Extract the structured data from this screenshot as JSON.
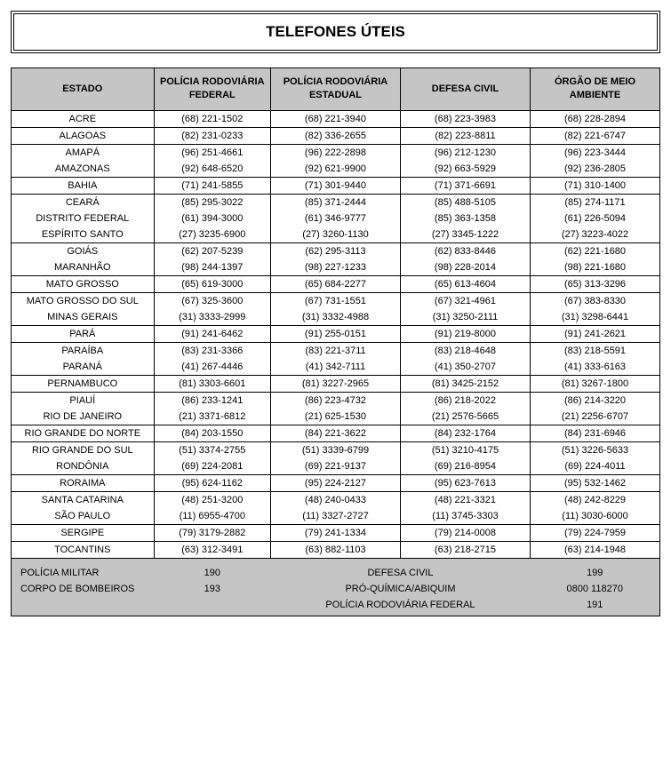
{
  "title": "TELEFONES ÚTEIS",
  "columns": [
    "ESTADO",
    "POLÍCIA RODOVIÁRIA FEDERAL",
    "POLÍCIA RODOVIÁRIA ESTADUAL",
    "DEFESA CIVIL",
    "ÓRGÃO DE MEIO AMBIENTE"
  ],
  "groups": [
    {
      "rows": [
        {
          "estado": "ACRE",
          "prf": "(68) 221-1502",
          "pre": "(68) 221-3940",
          "dc": "(68) 223-3983",
          "oma": "(68) 228-2894"
        }
      ]
    },
    {
      "rows": [
        {
          "estado": "ALAGOAS",
          "prf": "(82) 231-0233",
          "pre": "(82) 336-2655",
          "dc": "(82) 223-8811",
          "oma": "(82) 221-6747"
        }
      ]
    },
    {
      "rows": [
        {
          "estado": "AMAPÁ",
          "prf": "(96) 251-4661",
          "pre": "(96) 222-2898",
          "dc": "(96) 212-1230",
          "oma": "(96) 223-3444"
        },
        {
          "estado": "AMAZONAS",
          "prf": "(92) 648-6520",
          "pre": "(92) 621-9900",
          "dc": "(92) 663-5929",
          "oma": "(92) 236-2805"
        }
      ]
    },
    {
      "rows": [
        {
          "estado": "BAHIA",
          "prf": "(71) 241-5855",
          "pre": "(71) 301-9440",
          "dc": "(71) 371-6691",
          "oma": "(71) 310-1400"
        }
      ]
    },
    {
      "rows": [
        {
          "estado": "CEARÁ",
          "prf": "(85) 295-3022",
          "pre": "(85) 371-2444",
          "dc": "(85) 488-5105",
          "oma": "(85) 274-1171"
        },
        {
          "estado": "DISTRITO FEDERAL",
          "prf": "(61) 394-3000",
          "pre": "(61) 346-9777",
          "dc": "(85) 363-1358",
          "oma": "(61) 226-5094"
        },
        {
          "estado": "ESPÍRITO SANTO",
          "prf": "(27) 3235-6900",
          "pre": "(27) 3260-1130",
          "dc": "(27) 3345-1222",
          "oma": "(27) 3223-4022"
        }
      ]
    },
    {
      "rows": [
        {
          "estado": "GOIÁS",
          "prf": "(62) 207-5239",
          "pre": "(62) 295-3113",
          "dc": "(62) 833-8446",
          "oma": "(62) 221-1680"
        },
        {
          "estado": "MARANHÃO",
          "prf": "(98) 244-1397",
          "pre": "(98) 227-1233",
          "dc": "(98) 228-2014",
          "oma": "(98) 221-1680"
        }
      ]
    },
    {
      "rows": [
        {
          "estado": "MATO GROSSO",
          "prf": "(65) 619-3000",
          "pre": "(65) 684-2277",
          "dc": "(65) 613-4604",
          "oma": "(65) 313-3296"
        }
      ]
    },
    {
      "rows": [
        {
          "estado": "MATO GROSSO DO SUL",
          "prf": "(67) 325-3600",
          "pre": "(67) 731-1551",
          "dc": "(67) 321-4961",
          "oma": "(67) 383-8330"
        },
        {
          "estado": "MINAS GERAIS",
          "prf": "(31) 3333-2999",
          "pre": "(31) 3332-4988",
          "dc": "(31) 3250-2111",
          "oma": "(31) 3298-6441"
        }
      ]
    },
    {
      "rows": [
        {
          "estado": "PARÁ",
          "prf": "(91) 241-6462",
          "pre": "(91) 255-0151",
          "dc": "(91) 219-8000",
          "oma": "(91) 241-2621"
        }
      ]
    },
    {
      "rows": [
        {
          "estado": "PARAÍBA",
          "prf": "(83) 231-3366",
          "pre": "(83) 221-3711",
          "dc": "(83) 218-4648",
          "oma": "(83) 218-5591"
        },
        {
          "estado": "PARANÁ",
          "prf": "(41) 267-4446",
          "pre": "(41) 342-7111",
          "dc": "(41) 350-2707",
          "oma": "(41) 333-6163"
        }
      ]
    },
    {
      "rows": [
        {
          "estado": "PERNAMBUCO",
          "prf": "(81) 3303-6601",
          "pre": "(81) 3227-2965",
          "dc": "(81) 3425-2152",
          "oma": "(81) 3267-1800"
        }
      ]
    },
    {
      "rows": [
        {
          "estado": "PIAUÍ",
          "prf": "(86) 233-1241",
          "pre": "(86) 223-4732",
          "dc": "(86) 218-2022",
          "oma": "(86) 214-3220"
        },
        {
          "estado": "RIO DE JANEIRO",
          "prf": "(21) 3371-6812",
          "pre": "(21) 625-1530",
          "dc": "(21) 2576-5665",
          "oma": "(21) 2256-6707"
        }
      ]
    },
    {
      "rows": [
        {
          "estado": "RIO GRANDE DO NORTE",
          "prf": "(84) 203-1550",
          "pre": "(84) 221-3622",
          "dc": "(84) 232-1764",
          "oma": "(84) 231-6946"
        }
      ]
    },
    {
      "rows": [
        {
          "estado": "RIO GRANDE DO SUL",
          "prf": "(51) 3374-2755",
          "pre": "(51) 3339-6799",
          "dc": "(51) 3210-4175",
          "oma": "(51) 3226-5633"
        },
        {
          "estado": "RONDÔNIA",
          "prf": "(69) 224-2081",
          "pre": "(69) 221-9137",
          "dc": "(69) 216-8954",
          "oma": "(69) 224-4011"
        }
      ]
    },
    {
      "rows": [
        {
          "estado": "RORAIMA",
          "prf": "(95) 624-1162",
          "pre": "(95) 224-2127",
          "dc": "(95) 623-7613",
          "oma": "(95) 532-1462"
        }
      ]
    },
    {
      "rows": [
        {
          "estado": "SANTA CATARINA",
          "prf": "(48) 251-3200",
          "pre": "(48) 240-0433",
          "dc": "(48) 221-3321",
          "oma": "(48) 242-8229"
        },
        {
          "estado": "SÃO PAULO",
          "prf": "(11) 6955-4700",
          "pre": "(11) 3327-2727",
          "dc": "(11) 3745-3303",
          "oma": "(11) 3030-6000"
        }
      ]
    },
    {
      "rows": [
        {
          "estado": "SERGIPE",
          "prf": "(79) 3179-2882",
          "pre": "(79) 241-1334",
          "dc": "(79) 214-0008",
          "oma": "(79) 224-7959"
        }
      ]
    },
    {
      "rows": [
        {
          "estado": "TOCANTINS",
          "prf": "(63) 312-3491",
          "pre": "(63) 882-1103",
          "dc": "(63) 218-2715",
          "oma": "(63) 214-1948"
        }
      ]
    }
  ],
  "footer": [
    {
      "label1": "POLÍCIA MILITAR",
      "val1": "190",
      "label2": "DEFESA CIVIL",
      "val2": "199"
    },
    {
      "label1": "CORPO DE BOMBEIROS",
      "val1": "193",
      "label2": "PRÓ-QUÍMICA/ABIQUIM",
      "val2": "0800 118270"
    },
    {
      "label1": "",
      "val1": "",
      "label2": "POLÍCIA RODOVIÁRIA FEDERAL",
      "val2": "191"
    }
  ],
  "table_style": {
    "header_bg": "#c5c5c5",
    "footer_bg": "#c5c5c5",
    "border_color": "#000000",
    "font_family": "Arial",
    "header_fontsize": 11,
    "body_fontsize": 11,
    "title_fontsize": 17,
    "col_widths_pct": [
      22,
      18,
      20,
      20,
      20
    ]
  }
}
